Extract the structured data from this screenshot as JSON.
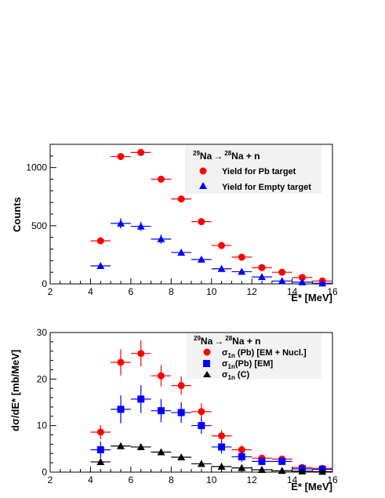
{
  "chart_data": [
    {
      "type": "scatter",
      "legend_title": {
        "sup1": "29",
        "el1": "Na",
        "arrow": "→",
        "sup2": "28",
        "el2": "Na + n"
      },
      "xlabel": "E* [MeV]",
      "ylabel": "Counts",
      "xlim": [
        2,
        16
      ],
      "ylim": [
        0,
        1200
      ],
      "xticks": [
        2,
        4,
        6,
        8,
        10,
        12,
        14,
        16
      ],
      "yticks": [
        0,
        500,
        1000
      ],
      "legend_position": "top-right",
      "series": [
        {
          "name": "Yield for Pb target",
          "marker": "circle",
          "color": "#ff0000",
          "x": [
            4.5,
            5.5,
            6.5,
            7.5,
            8.5,
            9.5,
            10.5,
            11.5,
            12.5,
            13.5,
            14.5,
            15.5
          ],
          "y": [
            370,
            1095,
            1130,
            900,
            730,
            535,
            330,
            230,
            140,
            100,
            55,
            25
          ],
          "xerr": 0.5,
          "yerr": [
            0,
            0,
            0,
            0,
            0,
            0,
            0,
            0,
            0,
            0,
            0,
            0
          ]
        },
        {
          "name": "Yield for Empty target",
          "marker": "triangle",
          "color": "#0000ff",
          "x": [
            4.5,
            5.5,
            6.5,
            7.5,
            8.5,
            9.5,
            10.5,
            11.5,
            12.5,
            13.5,
            14.5,
            15.5
          ],
          "y": [
            155,
            520,
            495,
            385,
            270,
            210,
            130,
            105,
            60,
            25,
            15,
            5
          ],
          "xerr": 0.5,
          "yerr": [
            0,
            45,
            40,
            40,
            30,
            0,
            0,
            0,
            0,
            0,
            0,
            0
          ]
        }
      ]
    },
    {
      "type": "scatter",
      "legend_title": {
        "sup1": "29",
        "el1": "Na",
        "arrow": "→",
        "sup2": "28",
        "el2": "Na + n"
      },
      "xlabel": "E* [MeV]",
      "ylabel": "dσ/dE* [mb/MeV]",
      "xlim": [
        2,
        16
      ],
      "ylim": [
        0,
        30
      ],
      "xticks": [
        2,
        4,
        6,
        8,
        10,
        12,
        14,
        16
      ],
      "yticks": [
        0,
        10,
        20,
        30
      ],
      "legend_position": "top-right",
      "series": [
        {
          "name": "σ1n (Pb) [EM + Nucl.]",
          "label_parts": {
            "sym": "σ",
            "sub": "1n",
            "rest": " (Pb) [EM + Nucl.]"
          },
          "marker": "circle",
          "color": "#ff0000",
          "x": [
            4.5,
            5.5,
            6.5,
            7.5,
            8.5,
            9.5,
            10.5,
            11.5,
            12.5,
            13.5,
            14.5,
            15.5
          ],
          "y": [
            8.6,
            23.6,
            25.5,
            20.7,
            18.6,
            13.0,
            7.8,
            4.8,
            3.0,
            2.8,
            1.0,
            0.8
          ],
          "xerr": 0.5,
          "yerr": [
            1.5,
            2.8,
            2.8,
            2.3,
            2.0,
            1.8,
            1.2,
            1.0,
            0.7,
            0.6,
            0.5,
            0.5
          ]
        },
        {
          "name": "σ1n(Pb) [EM]",
          "label_parts": {
            "sym": "σ",
            "sub": "1n",
            "rest": "(Pb) [EM]"
          },
          "marker": "square",
          "color": "#0000ff",
          "x": [
            4.5,
            5.5,
            6.5,
            7.5,
            8.5,
            9.5,
            10.5,
            11.5,
            12.5,
            13.5,
            14.5,
            15.5
          ],
          "y": [
            4.8,
            13.5,
            15.7,
            13.2,
            12.8,
            10.0,
            5.4,
            3.3,
            2.3,
            2.3,
            0.7,
            0.6
          ],
          "xerr": 0.5,
          "yerr": [
            1.8,
            3.0,
            3.0,
            2.5,
            2.2,
            1.8,
            1.4,
            1.1,
            0.8,
            0.7,
            0.5,
            0.5
          ]
        },
        {
          "name": "σ1n (C)",
          "label_parts": {
            "sym": "σ",
            "sub": "1n",
            "rest": " (C)"
          },
          "marker": "triangle",
          "color": "#000000",
          "x": [
            4.5,
            5.5,
            6.5,
            7.5,
            8.5,
            9.5,
            10.5,
            11.5,
            12.5,
            13.5,
            14.5,
            15.5
          ],
          "y": [
            2.2,
            5.6,
            5.4,
            4.3,
            3.2,
            1.8,
            1.2,
            0.9,
            0.5,
            0.3,
            0.2,
            0.1
          ],
          "xerr": 0.5,
          "yerr": [
            0,
            0,
            0,
            0,
            0,
            0,
            0,
            0,
            0,
            0,
            0,
            0
          ]
        }
      ]
    }
  ]
}
